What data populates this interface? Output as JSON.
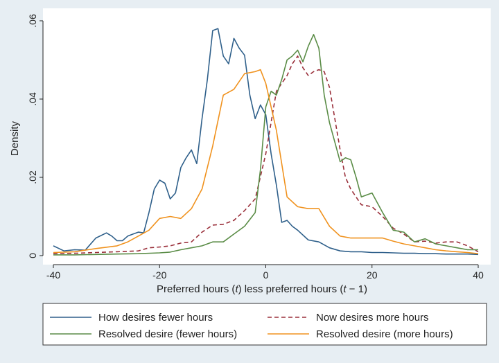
{
  "chart_data": {
    "type": "line",
    "title": "",
    "xlabel": "Preferred hours (t) less preferred hours (t − 1)",
    "xlabel_parts": [
      "Preferred hours (",
      "t",
      ") less preferred hours (",
      "t",
      " − 1)"
    ],
    "ylabel": "Density",
    "xlim": [
      -40,
      40
    ],
    "ylim": [
      0,
      0.06
    ],
    "xticks": [
      -40,
      -20,
      0,
      20,
      40
    ],
    "xtick_labels": [
      "-40",
      "-20",
      "0",
      "20",
      "40"
    ],
    "yticks": [
      0,
      0.02,
      0.04,
      0.06
    ],
    "ytick_labels": [
      "0",
      ".02",
      ".04",
      ".06"
    ],
    "grid": false,
    "legend_position": "bottom",
    "series": [
      {
        "name": "How desires fewer hours",
        "color": "#2e5f8a",
        "dash": "solid",
        "x": [
          -40,
          -38,
          -36,
          -34,
          -32,
          -30,
          -29,
          -28,
          -27,
          -26,
          -25,
          -24,
          -23,
          -22,
          -21,
          -20,
          -19,
          -18,
          -17,
          -16,
          -15,
          -14,
          -13,
          -12,
          -11,
          -10,
          -9,
          -8,
          -7,
          -6,
          -5,
          -4,
          -3,
          -2,
          -1,
          0,
          1,
          2,
          3,
          4,
          5,
          6,
          8,
          10,
          12,
          14,
          16,
          18,
          20,
          22,
          24,
          26,
          28,
          30,
          32,
          34,
          36,
          38,
          40
        ],
        "y": [
          0.0025,
          0.0012,
          0.0015,
          0.0014,
          0.0045,
          0.0058,
          0.005,
          0.0038,
          0.0038,
          0.005,
          0.0055,
          0.006,
          0.0058,
          0.011,
          0.017,
          0.0193,
          0.0185,
          0.0145,
          0.016,
          0.0225,
          0.025,
          0.027,
          0.0235,
          0.035,
          0.045,
          0.0575,
          0.058,
          0.051,
          0.049,
          0.0555,
          0.053,
          0.0512,
          0.041,
          0.035,
          0.0385,
          0.036,
          0.026,
          0.018,
          0.0085,
          0.009,
          0.0075,
          0.0065,
          0.004,
          0.0035,
          0.002,
          0.0012,
          0.001,
          0.001,
          0.0008,
          0.0008,
          0.0007,
          0.0006,
          0.0006,
          0.0005,
          0.0005,
          0.0004,
          0.0004,
          0.0004,
          0.0003
        ]
      },
      {
        "name": "Now desires more hours",
        "color": "#9a2f3a",
        "dash": "dashed",
        "x": [
          -40,
          -36,
          -32,
          -28,
          -24,
          -22,
          -20,
          -18,
          -16,
          -14,
          -12,
          -10,
          -8,
          -6,
          -4,
          -2,
          0,
          2,
          4,
          5,
          6,
          7,
          8,
          9,
          10,
          11,
          12,
          13,
          14,
          15,
          16,
          18,
          20,
          22,
          24,
          26,
          28,
          30,
          32,
          34,
          36,
          38,
          40
        ],
        "y": [
          0.0005,
          0.0006,
          0.0008,
          0.001,
          0.0012,
          0.002,
          0.0022,
          0.0025,
          0.0032,
          0.0035,
          0.006,
          0.0078,
          0.008,
          0.009,
          0.0115,
          0.0145,
          0.026,
          0.042,
          0.046,
          0.049,
          0.051,
          0.048,
          0.046,
          0.047,
          0.0475,
          0.047,
          0.043,
          0.035,
          0.027,
          0.02,
          0.017,
          0.013,
          0.0125,
          0.01,
          0.007,
          0.0055,
          0.0035,
          0.0037,
          0.0032,
          0.0035,
          0.0035,
          0.0025,
          0.001
        ]
      },
      {
        "name": "Resolved desire (fewer hours)",
        "color": "#5a8c46",
        "dash": "solid",
        "x": [
          -40,
          -36,
          -32,
          -28,
          -24,
          -20,
          -18,
          -16,
          -14,
          -12,
          -10,
          -8,
          -6,
          -4,
          -2,
          -1,
          0,
          1,
          2,
          3,
          4,
          5,
          6,
          7,
          8,
          9,
          10,
          11,
          12,
          13,
          14,
          15,
          16,
          17,
          18,
          19,
          20,
          22,
          24,
          26,
          28,
          30,
          32,
          34,
          36,
          38,
          40
        ],
        "y": [
          0.0002,
          0.0002,
          0.0003,
          0.0004,
          0.0005,
          0.0007,
          0.0009,
          0.0015,
          0.002,
          0.0025,
          0.0035,
          0.0035,
          0.0055,
          0.0075,
          0.011,
          0.022,
          0.038,
          0.042,
          0.041,
          0.045,
          0.05,
          0.051,
          0.0525,
          0.0495,
          0.0535,
          0.0565,
          0.053,
          0.041,
          0.034,
          0.029,
          0.024,
          0.025,
          0.0245,
          0.02,
          0.015,
          0.0155,
          0.016,
          0.011,
          0.0065,
          0.006,
          0.0035,
          0.0043,
          0.003,
          0.0025,
          0.002,
          0.0015,
          0.0015
        ]
      },
      {
        "name": "Resolved desire (more hours)",
        "color": "#f0921e",
        "dash": "solid",
        "x": [
          -40,
          -36,
          -32,
          -28,
          -26,
          -24,
          -22,
          -20,
          -18,
          -16,
          -14,
          -12,
          -10,
          -8,
          -6,
          -4,
          -2,
          -1,
          0,
          2,
          4,
          6,
          8,
          10,
          12,
          14,
          16,
          18,
          20,
          22,
          24,
          26,
          28,
          30,
          32,
          34,
          36,
          38,
          40
        ],
        "y": [
          0.0008,
          0.001,
          0.0018,
          0.0025,
          0.0035,
          0.005,
          0.0065,
          0.0095,
          0.01,
          0.0095,
          0.012,
          0.017,
          0.028,
          0.041,
          0.0425,
          0.0465,
          0.047,
          0.0475,
          0.044,
          0.032,
          0.015,
          0.0125,
          0.012,
          0.012,
          0.0075,
          0.005,
          0.0045,
          0.0045,
          0.0045,
          0.0045,
          0.0037,
          0.003,
          0.0025,
          0.002,
          0.0015,
          0.0012,
          0.001,
          0.0008,
          0.0005
        ]
      }
    ]
  }
}
